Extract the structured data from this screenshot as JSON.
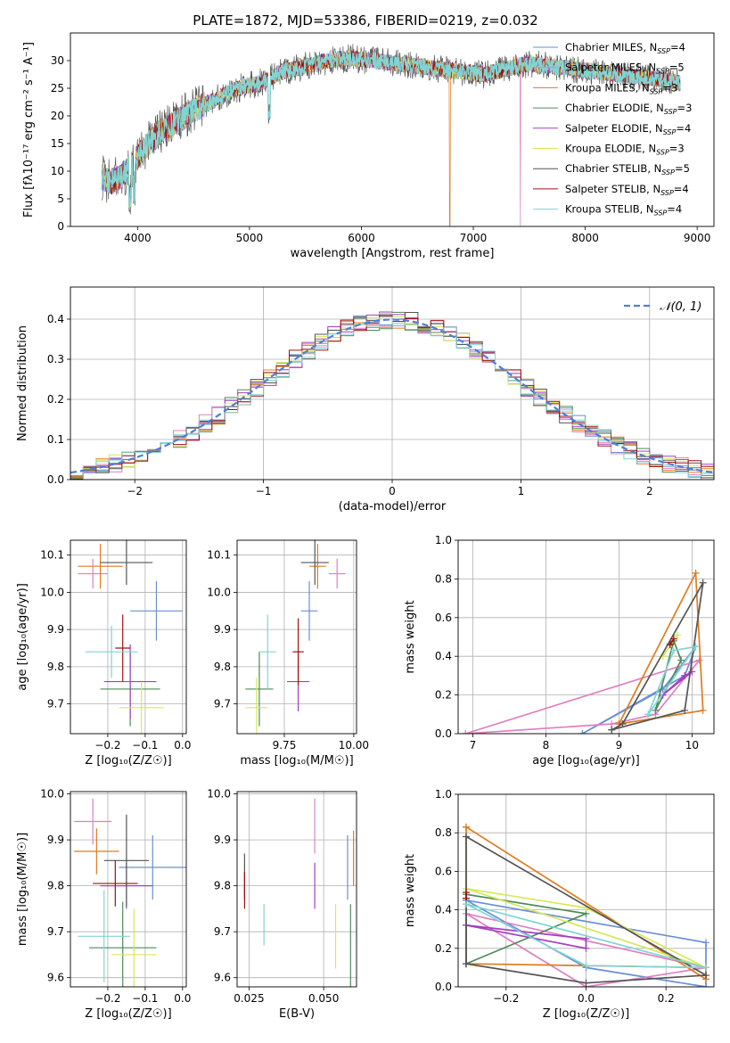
{
  "colors": [
    "#6a8fd6",
    "#e07fc0",
    "#e07b1f",
    "#4f8a5b",
    "#a43fbf",
    "#d6e85a",
    "#555555",
    "#a01010",
    "#80d4d4"
  ],
  "chart_data": [
    {
      "id": "spectrum",
      "type": "line",
      "title": "PLATE=1872, MJD=53386, FIBERID=0219, z=0.032",
      "xlabel": "wavelength [Angstrom, rest frame]",
      "ylabel": "Flux [fλ10⁻¹⁷ erg cm⁻² s⁻¹ A⁻¹]",
      "xlim": [
        3400,
        9150
      ],
      "ylim": [
        0,
        35
      ],
      "xticks": [
        4000,
        5000,
        6000,
        7000,
        8000,
        9000
      ],
      "yticks": [
        0,
        5,
        10,
        15,
        20,
        25,
        30
      ],
      "grid": false,
      "legend_position": "top-right",
      "continuum": {
        "x": [
          3680,
          3750,
          3850,
          3950,
          4050,
          4200,
          4350,
          4500,
          4700,
          4900,
          5100,
          5300,
          5500,
          5700,
          5900,
          6100,
          6300,
          6500,
          6700,
          6900,
          7100,
          7300,
          7500,
          7700,
          7900,
          8100,
          8300,
          8500,
          8700,
          8850
        ],
        "y": [
          9,
          8,
          9,
          11,
          14,
          17,
          19,
          21,
          23,
          25,
          26,
          28,
          29,
          30,
          30.5,
          30,
          29.5,
          29,
          28.5,
          28,
          27.5,
          28.5,
          29.5,
          29,
          28.5,
          28,
          27.5,
          27,
          26.5,
          26
        ]
      },
      "dropouts": [
        {
          "series": "Kroupa MILES",
          "x": 6790
        },
        {
          "series": "Salpeter MILES",
          "x": 7420
        }
      ],
      "series": [
        {
          "name": "Chabrier MILES",
          "ssp": "4"
        },
        {
          "name": "Salpeter MILES",
          "ssp": "5"
        },
        {
          "name": "Kroupa MILES",
          "ssp": "3"
        },
        {
          "name": "Chabrier ELODIE",
          "ssp": "3"
        },
        {
          "name": "Salpeter ELODIE",
          "ssp": "4"
        },
        {
          "name": "Kroupa ELODIE",
          "ssp": "3"
        },
        {
          "name": "Chabrier STELIB",
          "ssp": "5"
        },
        {
          "name": "Salpeter STELIB",
          "ssp": "4"
        },
        {
          "name": "Kroupa STELIB",
          "ssp": "4"
        }
      ]
    },
    {
      "id": "residuals",
      "type": "histogram",
      "xlabel": "(data-model)/error",
      "ylabel": "Normed distribution",
      "xlim": [
        -2.5,
        2.5
      ],
      "ylim": [
        0,
        0.48
      ],
      "xticks": [
        -2,
        -1,
        0,
        1,
        2
      ],
      "yticks": [
        0.0,
        0.1,
        0.2,
        0.3,
        0.4
      ],
      "grid": true,
      "bin_width": 0.1,
      "legend": [
        {
          "label": "𝒩(0, 1)",
          "style": "dashed",
          "color": "#4f7fd8"
        }
      ]
    },
    {
      "id": "age_vs_Z",
      "type": "errorbar",
      "xlabel": "Z [log₁₀(Z/Z☉)]",
      "ylabel": "age  [log₁₀(age/yr)]",
      "xlim": [
        -0.3,
        0.01
      ],
      "ylim": [
        9.62,
        10.14
      ],
      "xticks": [
        -0.2,
        -0.1,
        0.0
      ],
      "yticks": [
        9.7,
        9.8,
        9.9,
        10.0,
        10.1
      ],
      "grid": true,
      "points": [
        {
          "x": -0.07,
          "y": 9.95,
          "xerr": 0.07,
          "yerr": 0.08,
          "c": 0
        },
        {
          "x": -0.24,
          "y": 10.05,
          "xerr": 0.04,
          "yerr": 0.04,
          "c": 1
        },
        {
          "x": -0.22,
          "y": 10.07,
          "xerr": 0.06,
          "yerr": 0.06,
          "c": 2
        },
        {
          "x": -0.14,
          "y": 9.74,
          "xerr": 0.08,
          "yerr": 0.1,
          "c": 3
        },
        {
          "x": -0.14,
          "y": 9.76,
          "xerr": 0.07,
          "yerr": 0.1,
          "c": 4
        },
        {
          "x": -0.11,
          "y": 9.69,
          "xerr": 0.06,
          "yerr": 0.07,
          "c": 5
        },
        {
          "x": -0.15,
          "y": 10.08,
          "xerr": 0.07,
          "yerr": 0.06,
          "c": 6
        },
        {
          "x": -0.16,
          "y": 9.85,
          "xerr": 0.02,
          "yerr": 0.09,
          "c": 7
        },
        {
          "x": -0.19,
          "y": 9.84,
          "xerr": 0.07,
          "yerr": 0.07,
          "c": 8
        }
      ]
    },
    {
      "id": "age_vs_mass",
      "type": "errorbar",
      "xlabel": "mass [log₁₀(M/M☉)]",
      "xlim": [
        9.58,
        10.01
      ],
      "ylim": [
        9.62,
        10.14
      ],
      "xticks": [
        9.75,
        10.0
      ],
      "xtick_labels": [
        "9.75",
        "10.00"
      ],
      "yticks": [
        9.7,
        9.8,
        9.9,
        10.0,
        10.1
      ],
      "grid": true,
      "points": [
        {
          "x": 9.84,
          "y": 9.95,
          "xerr": 0.03,
          "yerr": 0.08,
          "c": 0
        },
        {
          "x": 9.94,
          "y": 10.05,
          "xerr": 0.03,
          "yerr": 0.04,
          "c": 1
        },
        {
          "x": 9.87,
          "y": 10.07,
          "xerr": 0.03,
          "yerr": 0.06,
          "c": 2
        },
        {
          "x": 9.66,
          "y": 9.74,
          "xerr": 0.05,
          "yerr": 0.1,
          "c": 3
        },
        {
          "x": 9.8,
          "y": 9.76,
          "xerr": 0.04,
          "yerr": 0.08,
          "c": 4
        },
        {
          "x": 9.65,
          "y": 9.69,
          "xerr": 0.04,
          "yerr": 0.08,
          "c": 5
        },
        {
          "x": 9.86,
          "y": 10.08,
          "xerr": 0.05,
          "yerr": 0.06,
          "c": 6
        },
        {
          "x": 9.8,
          "y": 9.84,
          "xerr": 0.02,
          "yerr": 0.09,
          "c": 7
        },
        {
          "x": 9.69,
          "y": 9.84,
          "xerr": 0.03,
          "yerr": 0.1,
          "c": 8
        }
      ]
    },
    {
      "id": "weight_vs_age",
      "type": "line",
      "xlabel": "age  [log₁₀(age/yr)]",
      "ylabel": "mass weight",
      "xlim": [
        6.8,
        10.3
      ],
      "ylim": [
        0,
        1.0
      ],
      "xticks": [
        7,
        8,
        9,
        10
      ],
      "yticks": [
        0.0,
        0.2,
        0.4,
        0.6,
        0.8,
        1.0
      ],
      "grid": true,
      "series": [
        {
          "c": 0,
          "x": [
            8.5,
            9.6,
            10.05,
            9.9,
            8.5
          ],
          "y": [
            0.0,
            0.23,
            0.45,
            0.3,
            0.0
          ]
        },
        {
          "c": 1,
          "x": [
            6.9,
            8.9,
            9.5,
            10.1,
            6.9
          ],
          "y": [
            0.0,
            0.05,
            0.1,
            0.38,
            0.0
          ]
        },
        {
          "c": 2,
          "x": [
            9.0,
            10.05,
            10.15,
            9.0
          ],
          "y": [
            0.05,
            0.83,
            0.12,
            0.05
          ]
        },
        {
          "c": 3,
          "x": [
            9.5,
            9.75,
            9.85,
            9.5
          ],
          "y": [
            0.12,
            0.48,
            0.38,
            0.12
          ]
        },
        {
          "c": 4,
          "x": [
            9.6,
            10.0,
            9.9,
            9.6
          ],
          "y": [
            0.2,
            0.32,
            0.3,
            0.2
          ]
        },
        {
          "c": 5,
          "x": [
            9.6,
            9.8,
            9.6
          ],
          "y": [
            0.4,
            0.51,
            0.4
          ]
        },
        {
          "c": 6,
          "x": [
            8.9,
            9.9,
            10.15,
            9.05,
            8.9
          ],
          "y": [
            0.02,
            0.12,
            0.78,
            0.05,
            0.02
          ]
        },
        {
          "c": 7,
          "x": [
            9.7,
            9.75,
            9.7
          ],
          "y": [
            0.46,
            0.49,
            0.46
          ]
        },
        {
          "c": 8,
          "x": [
            9.4,
            9.75,
            10.05,
            9.4
          ],
          "y": [
            0.1,
            0.43,
            0.45,
            0.1
          ]
        }
      ]
    },
    {
      "id": "mass_vs_Z",
      "type": "errorbar",
      "xlabel": "Z [log₁₀(Z/Z☉)]",
      "ylabel": "mass [log₁₀(M/M☉)]",
      "xlim": [
        -0.3,
        0.01
      ],
      "ylim": [
        9.58,
        10.005
      ],
      "xticks": [
        -0.2,
        -0.1,
        0.0
      ],
      "yticks": [
        9.6,
        9.7,
        9.8,
        9.9,
        10.0
      ],
      "grid": true,
      "points": [
        {
          "x": -0.08,
          "y": 9.84,
          "xerr": 0.09,
          "yerr": 0.07,
          "c": 0
        },
        {
          "x": -0.24,
          "y": 9.94,
          "xerr": 0.05,
          "yerr": 0.05,
          "c": 1
        },
        {
          "x": -0.23,
          "y": 9.875,
          "xerr": 0.06,
          "yerr": 0.05,
          "c": 2
        },
        {
          "x": -0.16,
          "y": 9.665,
          "xerr": 0.09,
          "yerr": 0.1,
          "c": 3
        },
        {
          "x": -0.15,
          "y": 9.8,
          "xerr": 0.07,
          "yerr": 0.05,
          "c": 4
        },
        {
          "x": -0.13,
          "y": 9.65,
          "xerr": 0.06,
          "yerr": 0.1,
          "c": 5
        },
        {
          "x": -0.15,
          "y": 9.855,
          "xerr": 0.06,
          "yerr": 0.1,
          "c": 6
        },
        {
          "x": -0.18,
          "y": 9.805,
          "xerr": 0.06,
          "yerr": 0.05,
          "c": 7
        },
        {
          "x": -0.21,
          "y": 9.69,
          "xerr": 0.07,
          "yerr": 0.1,
          "c": 8
        }
      ]
    },
    {
      "id": "mass_vs_EBV",
      "type": "errorbar",
      "xlabel": "E(B-V)",
      "xlim": [
        0.021,
        0.061
      ],
      "ylim": [
        9.58,
        10.005
      ],
      "xticks": [
        0.025,
        0.05
      ],
      "xtick_labels": [
        "0.025",
        "0.050"
      ],
      "yticks": [
        9.6,
        9.7,
        9.8,
        9.9,
        10.0
      ],
      "grid": true,
      "points": [
        {
          "x": 0.058,
          "y": 9.84,
          "xerr": 0,
          "yerr": 0.07,
          "c": 0
        },
        {
          "x": 0.047,
          "y": 9.93,
          "xerr": 0,
          "yerr": 0.06,
          "c": 1
        },
        {
          "x": 0.06,
          "y": 9.86,
          "xerr": 0,
          "yerr": 0.06,
          "c": 2
        },
        {
          "x": 0.059,
          "y": 9.66,
          "xerr": 0,
          "yerr": 0.1,
          "c": 3
        },
        {
          "x": 0.047,
          "y": 9.8,
          "xerr": 0,
          "yerr": 0.05,
          "c": 4
        },
        {
          "x": 0.054,
          "y": 9.69,
          "xerr": 0,
          "yerr": 0.07,
          "c": 5
        },
        {
          "x": 0.0235,
          "y": 9.82,
          "xerr": 0,
          "yerr": 0.05,
          "c": 6
        },
        {
          "x": 0.0235,
          "y": 9.79,
          "xerr": 0,
          "yerr": 0.04,
          "c": 7
        },
        {
          "x": 0.03,
          "y": 9.715,
          "xerr": 0,
          "yerr": 0.045,
          "c": 8
        }
      ]
    },
    {
      "id": "weight_vs_Z",
      "type": "line",
      "xlabel": "Z [log₁₀(Z/Z☉)]",
      "ylabel": "mass weight",
      "xlim": [
        -0.32,
        0.32
      ],
      "ylim": [
        0,
        1.0
      ],
      "xticks": [
        -0.2,
        0.0,
        0.2
      ],
      "yticks": [
        0.0,
        0.2,
        0.4,
        0.6,
        0.8,
        1.0
      ],
      "grid": true,
      "series": [
        {
          "c": 0,
          "x": [
            -0.3,
            0.3,
            0.3,
            0.0,
            -0.3
          ],
          "y": [
            0.45,
            0.23,
            0.0,
            0.1,
            0.45
          ]
        },
        {
          "c": 1,
          "x": [
            -0.3,
            0.0,
            0.3,
            -0.3
          ],
          "y": [
            0.38,
            0.0,
            0.1,
            0.38
          ]
        },
        {
          "c": 2,
          "x": [
            -0.3,
            0.3,
            0.3,
            -0.3,
            -0.3
          ],
          "y": [
            0.83,
            0.04,
            0.1,
            0.12,
            0.83
          ]
        },
        {
          "c": 3,
          "x": [
            -0.3,
            0.0,
            -0.3,
            -0.3
          ],
          "y": [
            0.12,
            0.38,
            0.48,
            0.12
          ]
        },
        {
          "c": 4,
          "x": [
            -0.3,
            0.0,
            0.0,
            -0.3
          ],
          "y": [
            0.32,
            0.2,
            0.25,
            0.32
          ]
        },
        {
          "c": 5,
          "x": [
            -0.3,
            0.0,
            0.3,
            -0.3
          ],
          "y": [
            0.51,
            0.41,
            0.1,
            0.51
          ]
        },
        {
          "c": 6,
          "x": [
            -0.3,
            0.0,
            0.3,
            -0.3,
            -0.3
          ],
          "y": [
            0.12,
            0.02,
            0.06,
            0.78,
            0.12
          ]
        },
        {
          "c": 7,
          "x": [
            -0.3,
            -0.3
          ],
          "y": [
            0.46,
            0.49
          ]
        },
        {
          "c": 8,
          "x": [
            -0.3,
            0.0,
            0.3,
            -0.3
          ],
          "y": [
            0.43,
            0.11,
            0.1,
            0.43
          ]
        }
      ]
    }
  ]
}
